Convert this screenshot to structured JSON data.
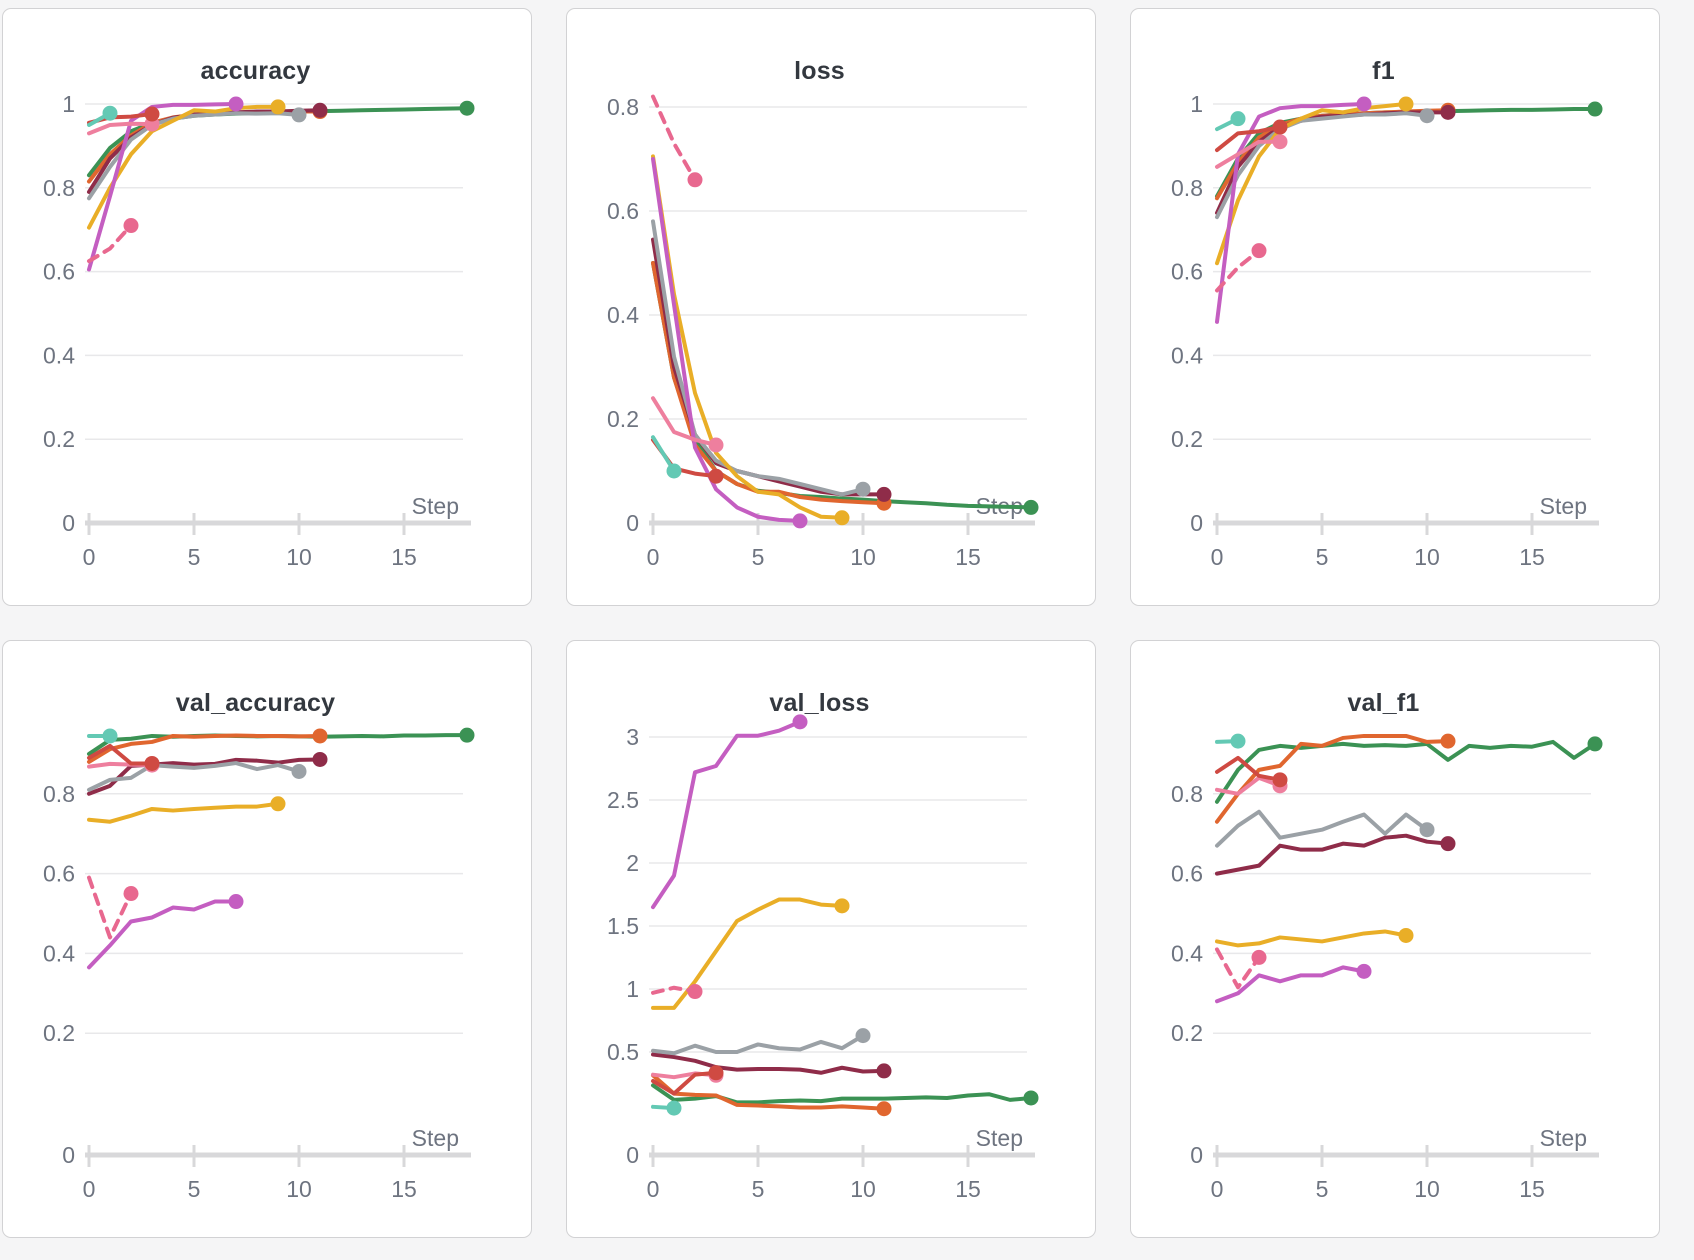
{
  "page": {
    "background": "#f5f5f6"
  },
  "panel_style": {
    "background": "#ffffff",
    "border_color": "#d2d2d4"
  },
  "axis_style": {
    "label_color": "#6e7480",
    "title_color": "#33383f",
    "axis_line_color": "#d8d8da",
    "grid_color": "#e8e8ea"
  },
  "runs": {
    "green": {
      "color": "#3b9254",
      "dashed": false
    },
    "orange": {
      "color": "#e0662f",
      "dashed": false
    },
    "maroon": {
      "color": "#8f2c49",
      "dashed": false
    },
    "gray": {
      "color": "#9ba1a6",
      "dashed": false
    },
    "yellow": {
      "color": "#e9ae27",
      "dashed": false
    },
    "magenta": {
      "color": "#c45ec1",
      "dashed": false
    },
    "pink": {
      "color": "#ee7f9e",
      "dashed": false
    },
    "pinkdash": {
      "color": "#e8688f",
      "dashed": true
    },
    "red": {
      "color": "#cf4a42",
      "dashed": false
    },
    "teal": {
      "color": "#63c9b4",
      "dashed": false
    }
  },
  "chart_data": [
    {
      "type": "line",
      "title": "accuracy",
      "xlabel": "Step",
      "x_ticks": [
        0,
        5,
        10,
        15
      ],
      "x_tick_labels": [
        "0",
        "5",
        "10",
        "15"
      ],
      "y_ticks": [
        1,
        0.8,
        0.6,
        0.4,
        0.2,
        0
      ],
      "y_tick_labels": [
        "1",
        "0.8",
        "0.6",
        "0.4",
        "0.2",
        "0"
      ],
      "ylim": [
        0,
        1.05
      ],
      "xlim": [
        0,
        18
      ],
      "grid": true,
      "legend": false,
      "series": [
        {
          "run": "green",
          "values": [
            0.83,
            0.895,
            0.935,
            0.955,
            0.965,
            0.972,
            0.975,
            0.977,
            0.978,
            0.98,
            0.982,
            0.983,
            0.984,
            0.985,
            0.986,
            0.987,
            0.988,
            0.989,
            0.99
          ]
        },
        {
          "run": "orange",
          "values": [
            0.815,
            0.88,
            0.925,
            0.955,
            0.968,
            0.974,
            0.977,
            0.98,
            0.98,
            0.982,
            0.982,
            0.982
          ]
        },
        {
          "run": "maroon",
          "values": [
            0.79,
            0.87,
            0.92,
            0.95,
            0.967,
            0.975,
            0.977,
            0.98,
            0.982,
            0.982,
            0.984,
            0.985
          ]
        },
        {
          "run": "gray",
          "values": [
            0.775,
            0.85,
            0.915,
            0.95,
            0.965,
            0.972,
            0.975,
            0.978,
            0.977,
            0.978,
            0.974
          ]
        },
        {
          "run": "yellow",
          "values": [
            0.705,
            0.8,
            0.88,
            0.935,
            0.96,
            0.985,
            0.982,
            0.99,
            0.993,
            0.993
          ]
        },
        {
          "run": "magenta",
          "values": [
            0.605,
            0.78,
            0.96,
            0.993,
            0.998,
            0.998,
            0.999,
            1.0
          ]
        },
        {
          "run": "pink",
          "values": [
            0.93,
            0.95,
            0.953,
            0.952
          ]
        },
        {
          "run": "pinkdash",
          "values": [
            0.625,
            0.655,
            0.71
          ]
        },
        {
          "run": "red",
          "values": [
            0.955,
            0.968,
            0.97,
            0.976
          ]
        },
        {
          "run": "teal",
          "values": [
            0.95,
            0.978
          ]
        }
      ]
    },
    {
      "type": "line",
      "title": "loss",
      "xlabel": "Step",
      "x_ticks": [
        0,
        5,
        10,
        15
      ],
      "x_tick_labels": [
        "0",
        "5",
        "10",
        "15"
      ],
      "y_ticks": [
        0.8,
        0.6,
        0.4,
        0.2,
        0
      ],
      "y_tick_labels": [
        "0.8",
        "0.6",
        "0.4",
        "0.2",
        "0"
      ],
      "ylim": [
        0,
        0.85
      ],
      "xlim": [
        0,
        18
      ],
      "grid": true,
      "legend": false,
      "series": [
        {
          "run": "green",
          "values": [
            0.5,
            0.28,
            0.16,
            0.1,
            0.075,
            0.062,
            0.058,
            0.052,
            0.05,
            0.047,
            0.045,
            0.042,
            0.04,
            0.038,
            0.035,
            0.033,
            0.032,
            0.031,
            0.03
          ]
        },
        {
          "run": "orange",
          "values": [
            0.5,
            0.28,
            0.15,
            0.1,
            0.075,
            0.06,
            0.06,
            0.05,
            0.045,
            0.042,
            0.04,
            0.038
          ]
        },
        {
          "run": "maroon",
          "values": [
            0.545,
            0.3,
            0.17,
            0.115,
            0.1,
            0.09,
            0.08,
            0.07,
            0.06,
            0.055,
            0.055,
            0.055
          ]
        },
        {
          "run": "gray",
          "values": [
            0.58,
            0.32,
            0.17,
            0.12,
            0.1,
            0.09,
            0.085,
            0.075,
            0.065,
            0.055,
            0.065
          ]
        },
        {
          "run": "yellow",
          "values": [
            0.705,
            0.44,
            0.25,
            0.135,
            0.09,
            0.06,
            0.055,
            0.03,
            0.012,
            0.01
          ]
        },
        {
          "run": "magenta",
          "values": [
            0.7,
            0.42,
            0.145,
            0.065,
            0.03,
            0.012,
            0.006,
            0.004
          ]
        },
        {
          "run": "pink",
          "values": [
            0.24,
            0.175,
            0.16,
            0.15
          ]
        },
        {
          "run": "pinkdash",
          "values": [
            0.82,
            0.73,
            0.66
          ]
        },
        {
          "run": "red",
          "values": [
            0.16,
            0.105,
            0.095,
            0.09
          ]
        },
        {
          "run": "teal",
          "values": [
            0.165,
            0.1
          ]
        }
      ]
    },
    {
      "type": "line",
      "title": "f1",
      "xlabel": "Step",
      "x_ticks": [
        0,
        5,
        10,
        15
      ],
      "x_tick_labels": [
        "0",
        "5",
        "10",
        "15"
      ],
      "y_ticks": [
        1,
        0.8,
        0.6,
        0.4,
        0.2,
        0
      ],
      "y_tick_labels": [
        "1",
        "0.8",
        "0.6",
        "0.4",
        "0.2",
        "0"
      ],
      "ylim": [
        0,
        1.05
      ],
      "xlim": [
        0,
        18
      ],
      "grid": true,
      "legend": false,
      "series": [
        {
          "run": "green",
          "values": [
            0.78,
            0.87,
            0.93,
            0.955,
            0.965,
            0.972,
            0.976,
            0.978,
            0.98,
            0.98,
            0.982,
            0.983,
            0.984,
            0.985,
            0.986,
            0.986,
            0.987,
            0.988,
            0.988
          ]
        },
        {
          "run": "orange",
          "values": [
            0.775,
            0.86,
            0.92,
            0.95,
            0.965,
            0.972,
            0.975,
            0.978,
            0.98,
            0.982,
            0.984,
            0.985
          ]
        },
        {
          "run": "maroon",
          "values": [
            0.74,
            0.85,
            0.91,
            0.945,
            0.96,
            0.97,
            0.972,
            0.975,
            0.978,
            0.98,
            0.98,
            0.98
          ]
        },
        {
          "run": "gray",
          "values": [
            0.73,
            0.83,
            0.9,
            0.94,
            0.96,
            0.965,
            0.97,
            0.975,
            0.975,
            0.978,
            0.972
          ]
        },
        {
          "run": "yellow",
          "values": [
            0.62,
            0.77,
            0.875,
            0.94,
            0.965,
            0.985,
            0.98,
            0.99,
            0.995,
            1.0
          ]
        },
        {
          "run": "magenta",
          "values": [
            0.48,
            0.88,
            0.97,
            0.99,
            0.995,
            0.995,
            0.998,
            1.0
          ]
        },
        {
          "run": "pink",
          "values": [
            0.85,
            0.88,
            0.91,
            0.91
          ]
        },
        {
          "run": "pinkdash",
          "values": [
            0.555,
            0.61,
            0.65
          ]
        },
        {
          "run": "red",
          "values": [
            0.89,
            0.93,
            0.935,
            0.945
          ]
        },
        {
          "run": "teal",
          "values": [
            0.94,
            0.965
          ]
        }
      ]
    },
    {
      "type": "line",
      "title": "val_accuracy",
      "xlabel": "Step",
      "x_ticks": [
        0,
        5,
        10,
        15
      ],
      "x_tick_labels": [
        "0",
        "5",
        "10",
        "15"
      ],
      "y_ticks": [
        0.8,
        0.6,
        0.4,
        0.2,
        0
      ],
      "y_tick_labels": [
        "0.8",
        "0.6",
        "0.4",
        "0.2",
        "0"
      ],
      "ylim": [
        0,
        1.0
      ],
      "xlim": [
        0,
        18
      ],
      "grid": true,
      "legend": false,
      "series": [
        {
          "run": "green",
          "values": [
            0.9,
            0.935,
            0.938,
            0.945,
            0.943,
            0.945,
            0.946,
            0.945,
            0.944,
            0.945,
            0.944,
            0.943,
            0.944,
            0.945,
            0.944,
            0.946,
            0.946,
            0.947,
            0.947
          ]
        },
        {
          "run": "orange",
          "values": [
            0.88,
            0.912,
            0.925,
            0.93,
            0.945,
            0.943,
            0.945,
            0.946,
            0.945,
            0.945,
            0.944,
            0.945
          ]
        },
        {
          "run": "maroon",
          "values": [
            0.8,
            0.82,
            0.87,
            0.873,
            0.877,
            0.873,
            0.875,
            0.885,
            0.883,
            0.878,
            0.885,
            0.886
          ]
        },
        {
          "run": "gray",
          "values": [
            0.81,
            0.835,
            0.84,
            0.872,
            0.868,
            0.865,
            0.87,
            0.877,
            0.862,
            0.872,
            0.856
          ]
        },
        {
          "run": "yellow",
          "values": [
            0.735,
            0.73,
            0.745,
            0.762,
            0.758,
            0.762,
            0.765,
            0.768,
            0.768,
            0.775
          ]
        },
        {
          "run": "magenta",
          "values": [
            0.365,
            0.42,
            0.48,
            0.49,
            0.515,
            0.51,
            0.53,
            0.53
          ]
        },
        {
          "run": "pink",
          "values": [
            0.868,
            0.875,
            0.873,
            0.872
          ]
        },
        {
          "run": "pinkdash",
          "values": [
            0.59,
            0.44,
            0.55
          ]
        },
        {
          "run": "red",
          "values": [
            0.89,
            0.92,
            0.876,
            0.876
          ]
        },
        {
          "run": "teal",
          "values": [
            0.945,
            0.945
          ]
        }
      ]
    },
    {
      "type": "line",
      "title": "val_loss",
      "xlabel": "Step",
      "x_ticks": [
        0,
        5,
        10,
        15
      ],
      "x_tick_labels": [
        "0",
        "5",
        "10",
        "15"
      ],
      "y_ticks": [
        3,
        2.5,
        2,
        1.5,
        1,
        0.5,
        0
      ],
      "y_tick_labels": [
        "3",
        "2.5",
        "2",
        "1.5",
        "1",
        "0.5",
        "0"
      ],
      "ylim": [
        0,
        3.3
      ],
      "xlim": [
        0,
        18
      ],
      "grid": true,
      "legend": false,
      "series": [
        {
          "run": "green",
          "values": [
            0.235,
            0.12,
            0.13,
            0.15,
            0.1,
            0.1,
            0.11,
            0.115,
            0.11,
            0.13,
            0.13,
            0.13,
            0.135,
            0.14,
            0.135,
            0.155,
            0.165,
            0.12,
            0.135
          ]
        },
        {
          "run": "orange",
          "values": [
            0.315,
            0.17,
            0.16,
            0.155,
            0.08,
            0.075,
            0.068,
            0.06,
            0.06,
            0.068,
            0.06,
            0.05
          ]
        },
        {
          "run": "maroon",
          "values": [
            0.48,
            0.46,
            0.43,
            0.38,
            0.36,
            0.365,
            0.365,
            0.36,
            0.335,
            0.375,
            0.345,
            0.35
          ]
        },
        {
          "run": "gray",
          "values": [
            0.51,
            0.49,
            0.55,
            0.5,
            0.5,
            0.56,
            0.53,
            0.52,
            0.58,
            0.53,
            0.63
          ]
        },
        {
          "run": "yellow",
          "values": [
            0.85,
            0.85,
            1.06,
            1.3,
            1.54,
            1.63,
            1.71,
            1.71,
            1.67,
            1.66
          ]
        },
        {
          "run": "magenta",
          "values": [
            1.65,
            1.9,
            2.72,
            2.77,
            3.01,
            3.01,
            3.05,
            3.12
          ]
        },
        {
          "run": "pink",
          "values": [
            0.32,
            0.3,
            0.33,
            0.315
          ]
        },
        {
          "run": "pinkdash",
          "values": [
            0.97,
            1.01,
            0.98
          ]
        },
        {
          "run": "red",
          "values": [
            0.27,
            0.17,
            0.32,
            0.335
          ]
        },
        {
          "run": "teal",
          "values": [
            0.065,
            0.055
          ]
        }
      ]
    },
    {
      "type": "line",
      "title": "val_f1",
      "xlabel": "Step",
      "x_ticks": [
        0,
        5,
        10,
        15
      ],
      "x_tick_labels": [
        "0",
        "5",
        "10",
        "15"
      ],
      "y_ticks": [
        0.8,
        0.6,
        0.4,
        0.2,
        0
      ],
      "y_tick_labels": [
        "0.8",
        "0.6",
        "0.4",
        "0.2",
        "0"
      ],
      "ylim": [
        0,
        1.0
      ],
      "xlim": [
        0,
        18
      ],
      "grid": true,
      "legend": false,
      "series": [
        {
          "run": "green",
          "values": [
            0.78,
            0.86,
            0.91,
            0.92,
            0.915,
            0.92,
            0.925,
            0.92,
            0.922,
            0.92,
            0.925,
            0.885,
            0.92,
            0.915,
            0.92,
            0.918,
            0.93,
            0.89,
            0.925
          ]
        },
        {
          "run": "orange",
          "values": [
            0.73,
            0.8,
            0.86,
            0.87,
            0.925,
            0.92,
            0.94,
            0.945,
            0.945,
            0.945,
            0.93,
            0.932
          ]
        },
        {
          "run": "maroon",
          "values": [
            0.6,
            0.61,
            0.62,
            0.67,
            0.66,
            0.66,
            0.675,
            0.67,
            0.69,
            0.695,
            0.68,
            0.675
          ]
        },
        {
          "run": "gray",
          "values": [
            0.67,
            0.72,
            0.755,
            0.69,
            0.7,
            0.71,
            0.73,
            0.748,
            0.7,
            0.748,
            0.71
          ]
        },
        {
          "run": "yellow",
          "values": [
            0.43,
            0.42,
            0.425,
            0.44,
            0.435,
            0.43,
            0.44,
            0.45,
            0.455,
            0.445
          ]
        },
        {
          "run": "magenta",
          "values": [
            0.28,
            0.3,
            0.345,
            0.33,
            0.345,
            0.345,
            0.365,
            0.355
          ]
        },
        {
          "run": "pink",
          "values": [
            0.81,
            0.8,
            0.84,
            0.82
          ]
        },
        {
          "run": "pinkdash",
          "values": [
            0.41,
            0.315,
            0.39
          ]
        },
        {
          "run": "red",
          "values": [
            0.855,
            0.89,
            0.845,
            0.835
          ]
        },
        {
          "run": "teal",
          "values": [
            0.93,
            0.932
          ]
        }
      ]
    }
  ]
}
